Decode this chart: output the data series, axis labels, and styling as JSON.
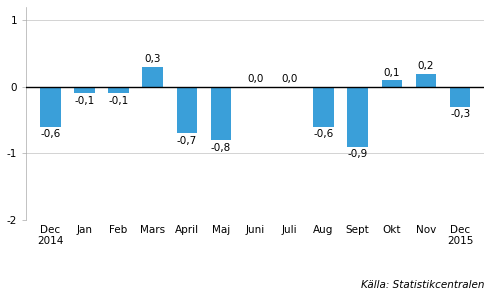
{
  "categories": [
    "Dec\n2014",
    "Jan",
    "Feb",
    "Mars",
    "April",
    "Maj",
    "Juni",
    "Juli",
    "Aug",
    "Sept",
    "Okt",
    "Nov",
    "Dec\n2015"
  ],
  "values": [
    -0.6,
    -0.1,
    -0.1,
    0.3,
    -0.7,
    -0.8,
    0.0,
    0.0,
    -0.6,
    -0.9,
    0.1,
    0.2,
    -0.3
  ],
  "bar_color": "#3a9fd9",
  "ylim": [
    -2,
    1.2
  ],
  "yticks": [
    -2,
    -1,
    0,
    1
  ],
  "source_text": "Källa: Statistikcentralen",
  "background_color": "#ffffff",
  "label_fontsize": 7.5,
  "tick_fontsize": 7.5,
  "source_fontsize": 7.5
}
